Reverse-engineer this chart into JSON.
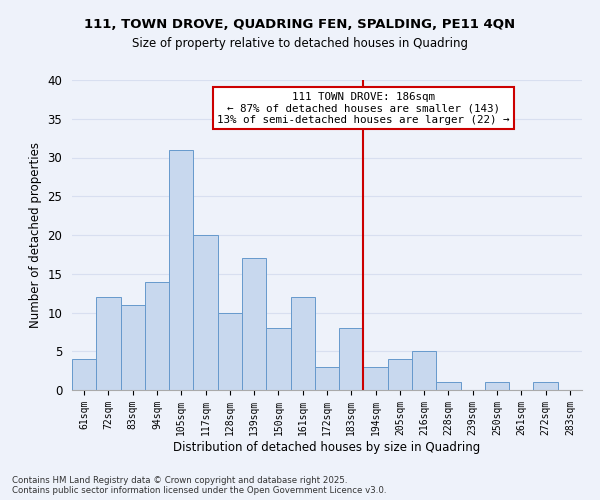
{
  "title1": "111, TOWN DROVE, QUADRING FEN, SPALDING, PE11 4QN",
  "title2": "Size of property relative to detached houses in Quadring",
  "xlabel": "Distribution of detached houses by size in Quadring",
  "ylabel": "Number of detached properties",
  "bar_labels": [
    "61sqm",
    "72sqm",
    "83sqm",
    "94sqm",
    "105sqm",
    "117sqm",
    "128sqm",
    "139sqm",
    "150sqm",
    "161sqm",
    "172sqm",
    "183sqm",
    "194sqm",
    "205sqm",
    "216sqm",
    "228sqm",
    "239sqm",
    "250sqm",
    "261sqm",
    "272sqm",
    "283sqm"
  ],
  "bar_values": [
    4,
    12,
    11,
    14,
    31,
    20,
    10,
    17,
    8,
    12,
    3,
    8,
    3,
    4,
    5,
    1,
    0,
    1,
    0,
    1,
    0
  ],
  "bar_color": "#c8d8ee",
  "bar_edge_color": "#6699cc",
  "bg_color": "#eef2fa",
  "grid_color": "#d8dff0",
  "vline_x_index": 11,
  "vline_color": "#cc0000",
  "annotation_title": "111 TOWN DROVE: 186sqm",
  "annotation_line1": "← 87% of detached houses are smaller (143)",
  "annotation_line2": "13% of semi-detached houses are larger (22) →",
  "ylim": [
    0,
    40
  ],
  "yticks": [
    0,
    5,
    10,
    15,
    20,
    25,
    30,
    35,
    40
  ],
  "footer1": "Contains HM Land Registry data © Crown copyright and database right 2025.",
  "footer2": "Contains public sector information licensed under the Open Government Licence v3.0."
}
